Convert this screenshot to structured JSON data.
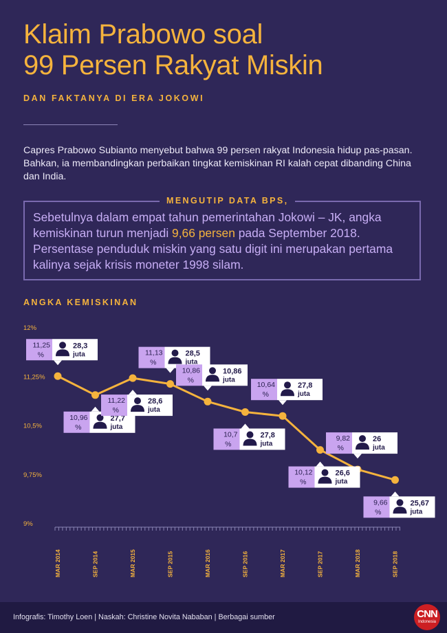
{
  "header": {
    "title_line1": "Klaim Prabowo soal",
    "title_line2": "99 Persen Rakyat Miskin",
    "subtitle": "DAN FAKTANYA DI ERA JOKOWI"
  },
  "intro": "Capres Prabowo Subianto menyebut bahwa 99 persen rakyat Indonesia hidup pas-pasan. Bahkan, ia membandingkan perbaikan tingkat kemiskinan RI kalah cepat dibanding China dan India.",
  "quote": {
    "label": "MENGUTIP DATA BPS,",
    "text_before": "Sebetulnya dalam empat tahun pemerintahan Jokowi – JK, angka kemiskinan turun menjadi ",
    "highlight": "9,66 persen",
    "text_after": " pada September 2018. Persentase penduduk miskin yang satu digit ini merupakan pertama kalinya sejak krisis moneter 1998 silam."
  },
  "chart_label": "ANGKA KEMISKINAN",
  "chart_data": {
    "type": "line",
    "title": "ANGKA KEMISKINAN",
    "x": [
      "MAR 2014",
      "SEP 2014",
      "MAR 2015",
      "SEP 2015",
      "MAR 2016",
      "SEP 2016",
      "MAR 2017",
      "SEP 2017",
      "MAR 2018",
      "SEP 2018"
    ],
    "series": [
      {
        "values": [
          11.25,
          10.96,
          11.22,
          11.13,
          10.86,
          10.7,
          10.64,
          10.12,
          9.82,
          9.66
        ],
        "value_labels": [
          "11,25 %",
          "10,96 %",
          "11,22 %",
          "11,13 %",
          "10,86 %",
          "10,7 %",
          "10,64 %",
          "10,12 %",
          "9,82 %",
          "9,66 %"
        ],
        "people_labels": [
          "28,3 juta",
          "27,7 juta",
          "28,6 juta",
          "28,5 juta",
          "10,86 juta",
          "27,8 juta",
          "27,8 juta",
          "26,6 juta",
          "26 juta",
          "25,67 juta"
        ],
        "callout_position": [
          "above",
          "below",
          "below",
          "above",
          "above",
          "below",
          "above",
          "below",
          "above",
          "below"
        ]
      }
    ],
    "y_ticks": [
      9,
      9.75,
      10.5,
      11.25,
      12
    ],
    "y_tick_labels": [
      "9%",
      "9,75%",
      "10,5%",
      "11,25%",
      "12%"
    ],
    "ylim": [
      9,
      12
    ],
    "grid": false,
    "colors": {
      "line": "#f5b33d",
      "value_box": "#c9a4ef",
      "people_box": "#ffffff",
      "axis_text": "#f5b33d"
    }
  },
  "footer": {
    "credits": "Infografis: Timothy Loen | Naskah: Christine Novita Nababan | Berbagai sumber",
    "logo_line1": "CNN",
    "logo_line2": "Indonesia"
  }
}
